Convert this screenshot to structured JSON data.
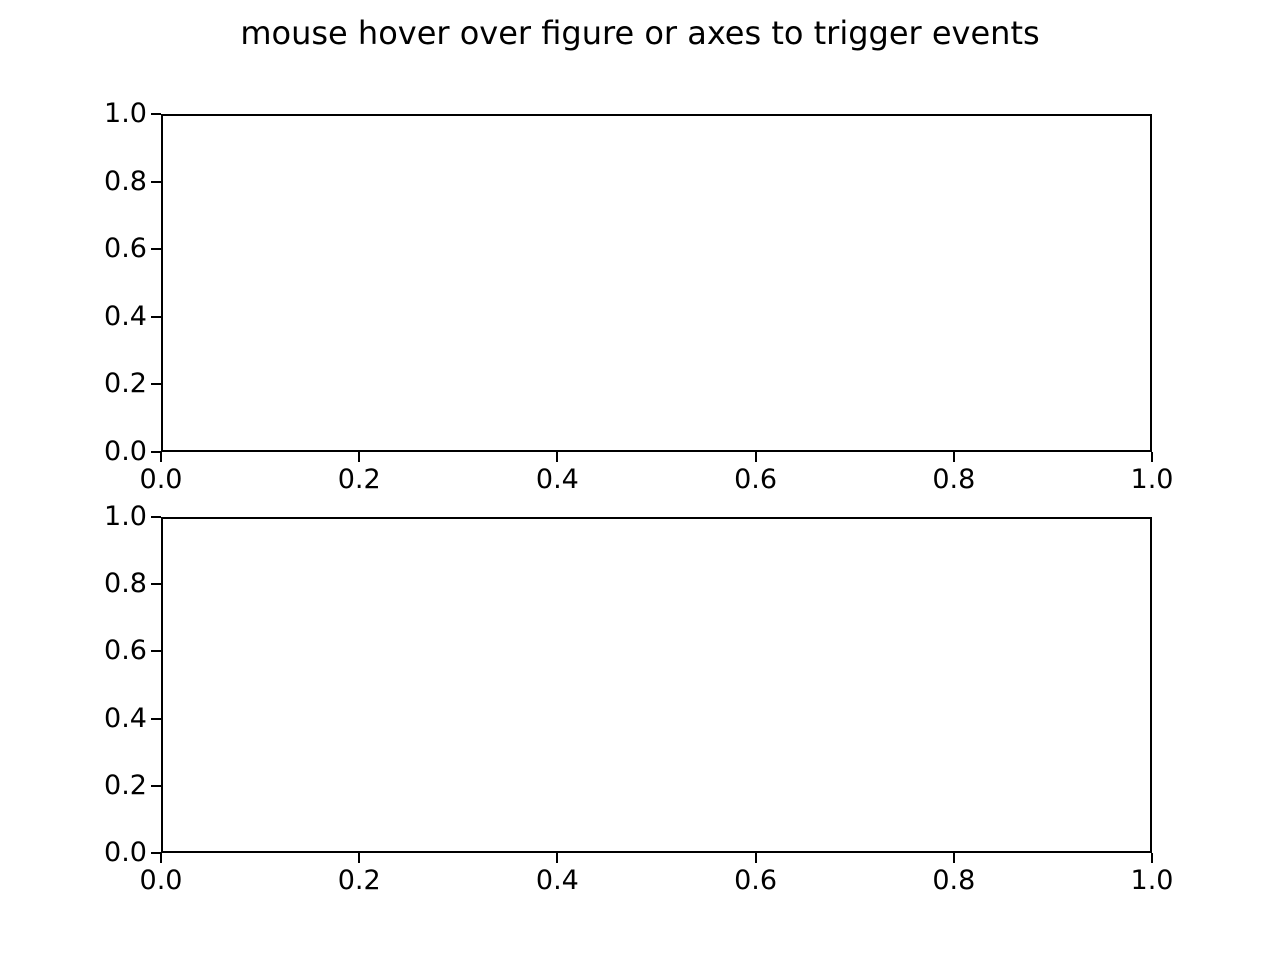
{
  "figure": {
    "title": "mouse hover over figure or axes to trigger events",
    "background_color": "#ffffff",
    "text_color": "#000000",
    "spine_color": "#000000"
  },
  "chart_data": [
    {
      "type": "line",
      "subplot": "top",
      "title": "",
      "xlabel": "",
      "ylabel": "",
      "series": [],
      "xlim": [
        0.0,
        1.0
      ],
      "ylim": [
        0.0,
        1.0
      ],
      "xtick_labels": [
        "0.0",
        "0.2",
        "0.4",
        "0.6",
        "0.8",
        "1.0"
      ],
      "ytick_labels": [
        "0.0",
        "0.2",
        "0.4",
        "0.6",
        "0.8",
        "1.0"
      ],
      "grid": false,
      "legend": null
    },
    {
      "type": "line",
      "subplot": "bottom",
      "title": "",
      "xlabel": "",
      "ylabel": "",
      "series": [],
      "xlim": [
        0.0,
        1.0
      ],
      "ylim": [
        0.0,
        1.0
      ],
      "xtick_labels": [
        "0.0",
        "0.2",
        "0.4",
        "0.6",
        "0.8",
        "1.0"
      ],
      "ytick_labels": [
        "0.0",
        "0.2",
        "0.4",
        "0.6",
        "0.8",
        "1.0"
      ],
      "grid": false,
      "legend": null
    }
  ]
}
